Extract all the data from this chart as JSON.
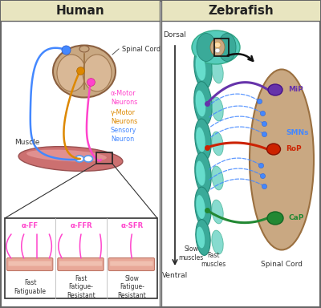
{
  "title_left": "Human",
  "title_right": "Zebrafish",
  "header_bg": "#e8e5c0",
  "panel_bg": "#ffffff",
  "border_color": "#666666",
  "spinal_cord_color": "#c9a882",
  "spinal_cord_edge": "#9b7040",
  "muscle_color_dark": "#c87878",
  "muscle_color_light": "#e0a0a0",
  "muscle_edge": "#a05050",
  "alpha_motor_color": "#ff44cc",
  "gamma_motor_color": "#dd8800",
  "sensory_color": "#4488ff",
  "mip_color": "#6633aa",
  "rop_color": "#cc2200",
  "cap_color": "#228833",
  "smn_color": "#4488ff",
  "teal_dark": "#3aaa99",
  "teal_mid": "#55ccbb",
  "teal_light": "#88ddcc",
  "inset_bg": "#f8f0f0",
  "legend_alpha": "α-Motor\nNeurons",
  "legend_gamma": "γ-Motor\nNeurons",
  "legend_sensory": "Sensory\nNeuron",
  "label_mip": "MiP",
  "label_rop": "RoP",
  "label_cap": "CaP",
  "label_smns": "SMNs",
  "label_spinal_cord": "Spinal Cord",
  "label_muscle": "Muscle",
  "label_spinal_cord_human": "Spinal Cord",
  "label_dorsal": "Dorsal",
  "label_ventral": "Ventral",
  "label_slow_muscles": "Slow\nmuscles",
  "label_fast_muscles": "Fast\nmuscles",
  "label_ff": "α-FF",
  "label_ffr": "α-FFR",
  "label_sfr": "α-SFR",
  "label_fast_fatigable": "Fast\nFatiguable",
  "label_fast_fatigue_r": "Fast\nFatigue-\nResistant",
  "label_slow_fatigue_r": "Slow\nFatigue-\nResistant"
}
